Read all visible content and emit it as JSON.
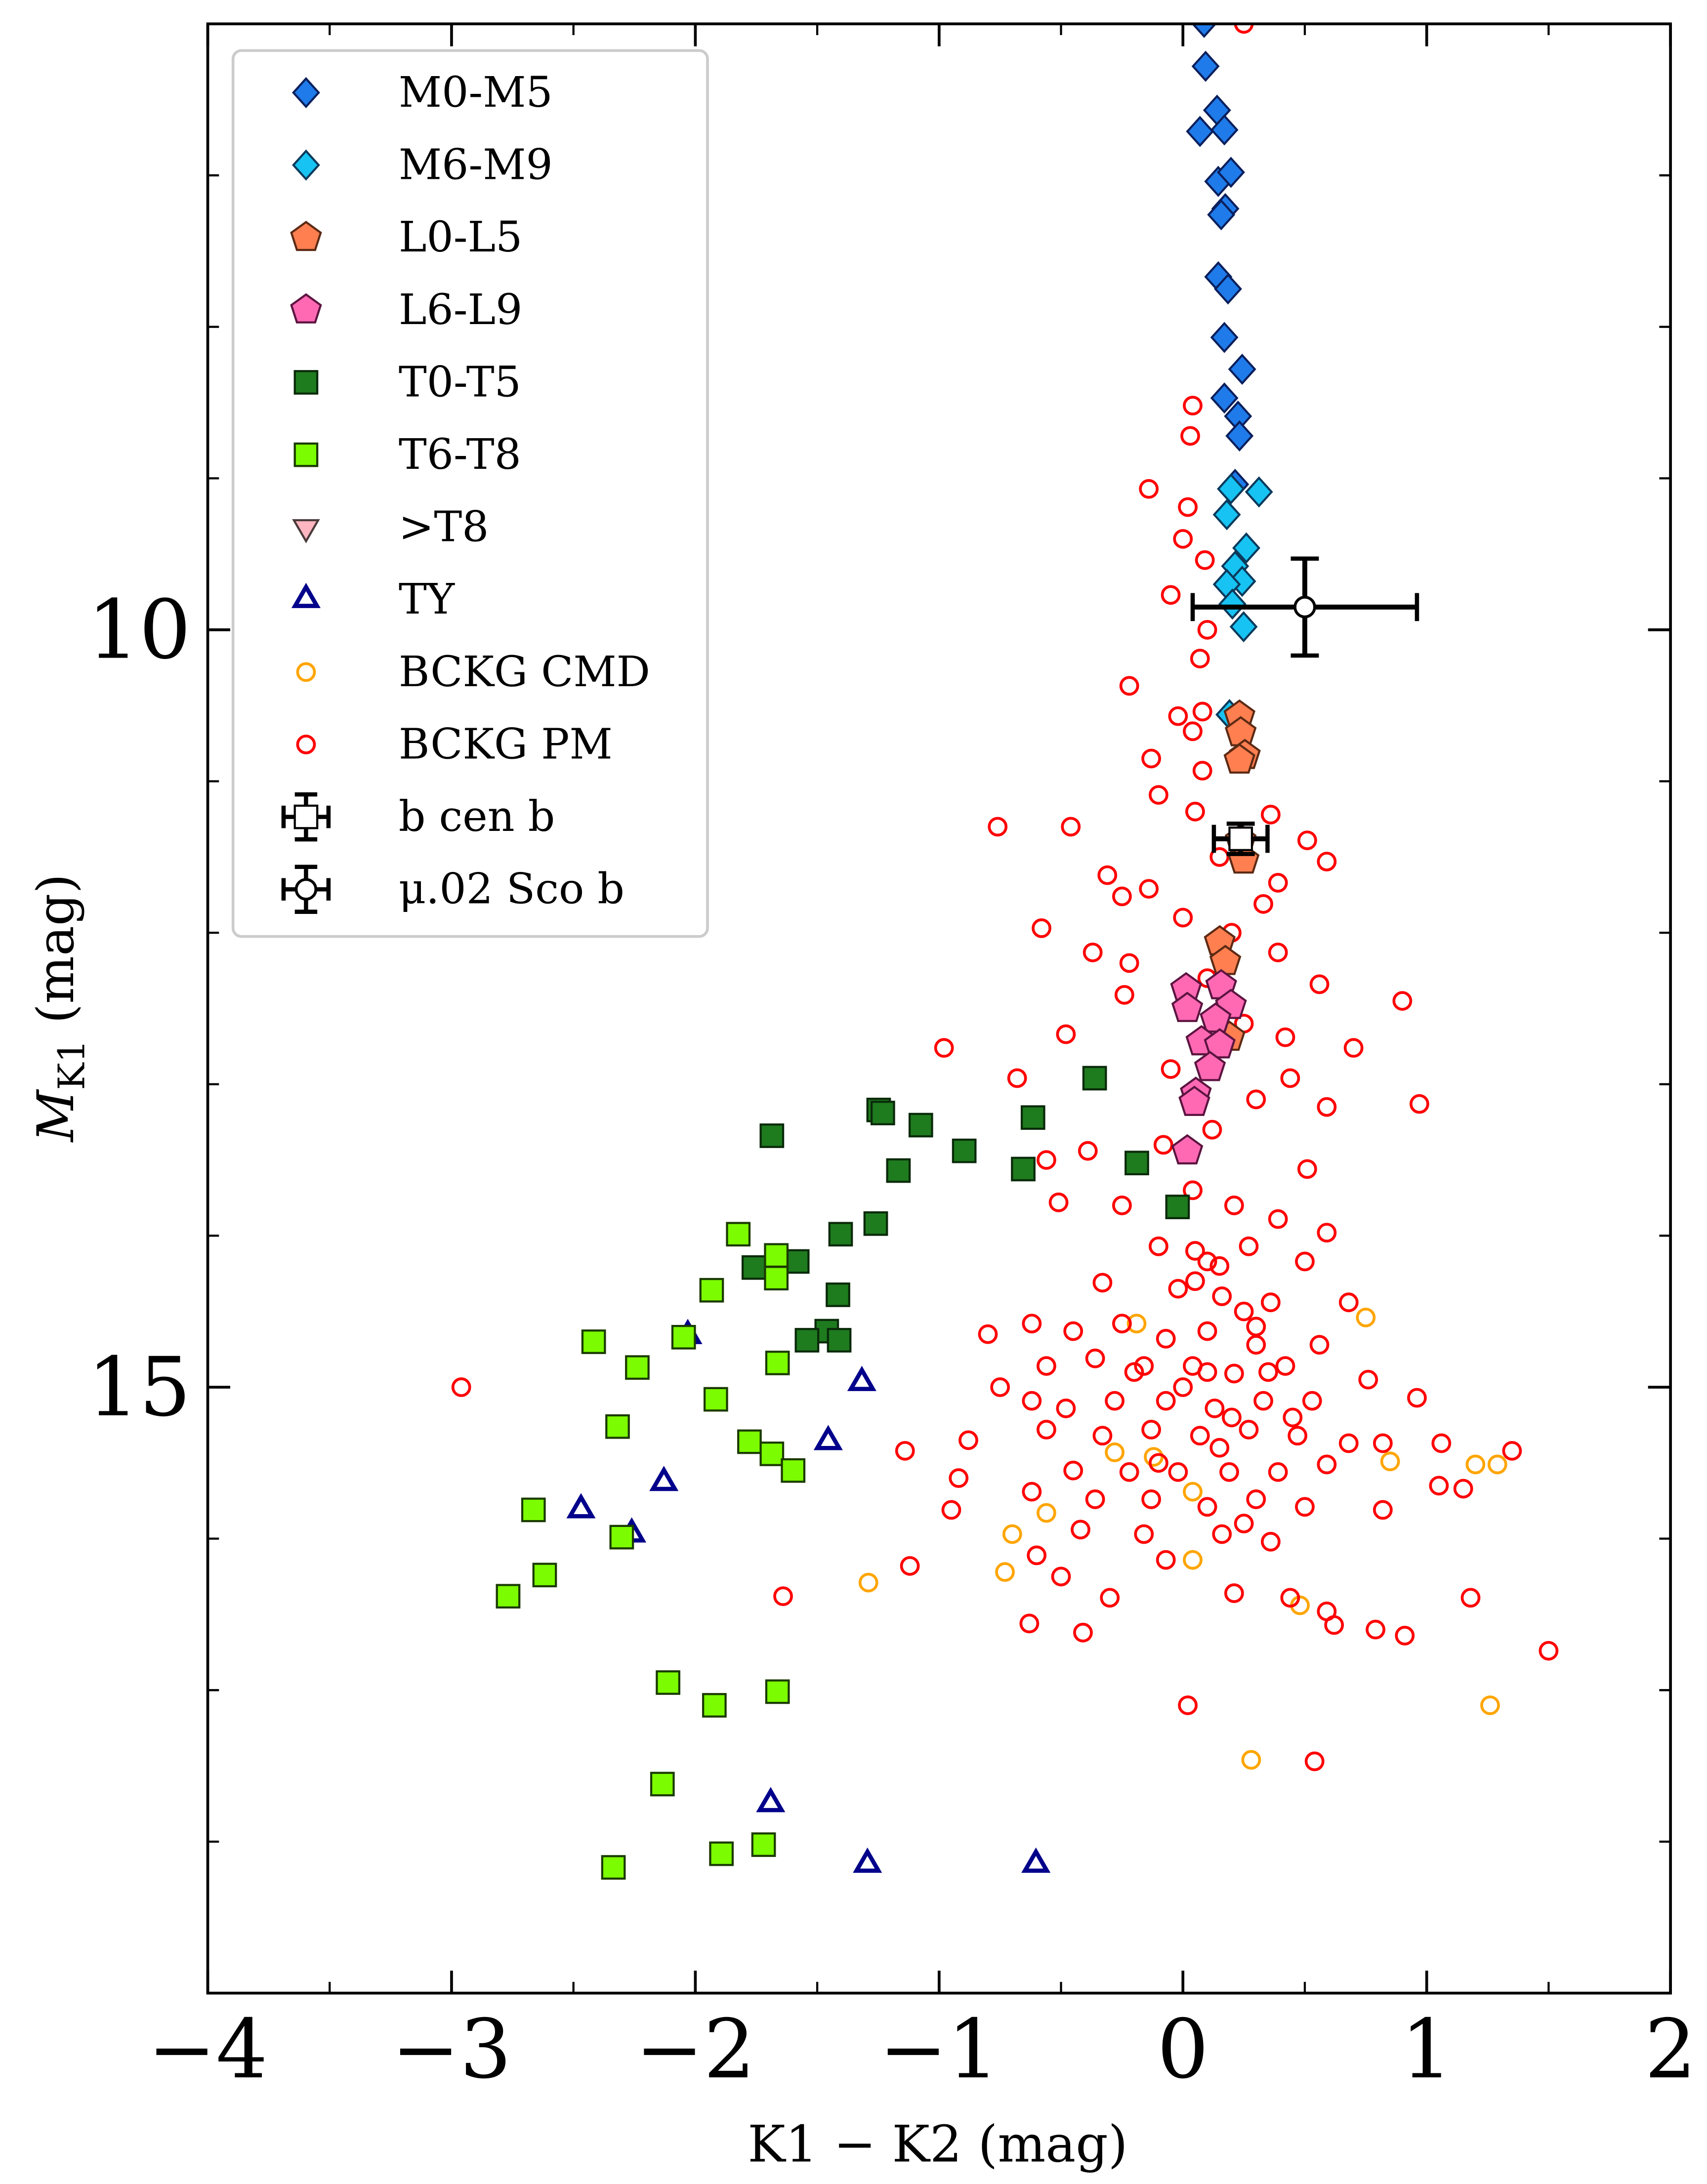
{
  "chart_data": {
    "type": "scatter",
    "xlabel": "K1 − K2 (mag)",
    "ylabel": [
      "M",
      "K1",
      " (mag)"
    ],
    "xlim": [
      -4,
      2
    ],
    "ylim": [
      6,
      19
    ],
    "y_inverted": true,
    "xticks": [
      {
        "value": -4,
        "label": "−4"
      },
      {
        "value": -3,
        "label": "−3"
      },
      {
        "value": -2,
        "label": "−2"
      },
      {
        "value": -1,
        "label": "−1"
      },
      0,
      1,
      2
    ],
    "xminor": [
      -3.5,
      -2.5,
      -1.5,
      -0.5,
      0.5,
      1.5
    ],
    "yticks": [
      10,
      15
    ],
    "yminor": [
      7,
      8,
      9,
      11,
      12,
      13,
      14,
      16,
      17,
      18
    ],
    "legend": "upper left",
    "series": [
      {
        "name": "M0-M5",
        "marker": "D",
        "color": "#1f7bea",
        "edgecolor": "#0b1f5c",
        "filled": true,
        "x": [
          0.087,
          0.093,
          0.14,
          0.07,
          0.17,
          0.145,
          0.197,
          0.174,
          0.157,
          0.145,
          0.185,
          0.17,
          0.243,
          0.17,
          0.226,
          0.232,
          0.214
        ],
        "y": [
          5.99,
          6.28,
          6.57,
          6.71,
          6.7,
          7.04,
          6.98,
          7.22,
          7.26,
          7.67,
          7.75,
          8.07,
          8.28,
          8.47,
          8.59,
          8.72,
          9.04
        ]
      },
      {
        "name": "M6-M9",
        "marker": "D",
        "color": "#17c3f2",
        "edgecolor": "#0b3a5c",
        "filled": true,
        "x": [
          0.312,
          0.197,
          0.18,
          0.26,
          0.214,
          0.243,
          0.18,
          0.203,
          0.249,
          0.191
        ],
        "y": [
          9.09,
          9.07,
          9.24,
          9.46,
          9.58,
          9.68,
          9.7,
          9.83,
          9.98,
          10.56
        ]
      },
      {
        "name": "L0-L5",
        "marker": "p",
        "color": "#ff7f50",
        "edgecolor": "#5c2a14",
        "filled": true,
        "x": [
          0.232,
          0.237,
          0.254,
          0.232,
          0.237,
          0.249,
          0.151,
          0.174,
          0.191
        ],
        "y": [
          10.57,
          10.68,
          10.83,
          10.86,
          11.39,
          11.52,
          12.06,
          12.19,
          12.69
        ]
      },
      {
        "name": "L6-L9",
        "marker": "p",
        "color": "#ff69b4",
        "edgecolor": "#5c1440",
        "filled": true,
        "x": [
          0.013,
          0.018,
          0.157,
          0.197,
          0.134,
          0.076,
          0.151,
          0.111,
          0.053,
          0.047,
          0.018
        ],
        "y": [
          12.37,
          12.5,
          12.35,
          12.48,
          12.57,
          12.72,
          12.74,
          12.89,
          13.06,
          13.12,
          13.44
        ]
      },
      {
        "name": "T0-T5",
        "marker": "s",
        "color": "#1e7b1e",
        "edgecolor": "#0a2a0a",
        "filled": true,
        "x": [
          -0.362,
          -0.615,
          -1.248,
          -1.231,
          -1.075,
          -1.686,
          -0.897,
          -0.655,
          -1.167,
          -0.189,
          -0.022,
          -1.404,
          -1.26,
          -1.76,
          -1.582,
          -1.415,
          -1.461,
          -1.542,
          -1.41
        ],
        "y": [
          12.96,
          13.22,
          13.17,
          13.19,
          13.27,
          13.34,
          13.44,
          13.56,
          13.57,
          13.52,
          13.81,
          13.99,
          13.92,
          14.21,
          14.17,
          14.39,
          14.63,
          14.69,
          14.69
        ]
      },
      {
        "name": "T6-T8",
        "marker": "s",
        "color": "#7cfc00",
        "edgecolor": "#1a3a00",
        "filled": true,
        "x": [
          -1.824,
          -1.668,
          -1.668,
          -1.933,
          -2.048,
          -2.417,
          -2.238,
          -1.663,
          -1.916,
          -2.319,
          -1.778,
          -1.686,
          -1.599,
          -2.664,
          -2.302,
          -2.618,
          -2.768,
          -2.112,
          -1.922,
          -1.663,
          -2.135,
          -1.893,
          -1.72,
          -2.336
        ],
        "y": [
          13.99,
          14.13,
          14.28,
          14.36,
          14.67,
          14.7,
          14.87,
          14.84,
          15.08,
          15.26,
          15.36,
          15.44,
          15.55,
          15.81,
          15.99,
          16.24,
          16.38,
          16.95,
          17.1,
          17.01,
          17.62,
          18.08,
          18.02,
          18.17
        ]
      },
      {
        "name": ">T8",
        "marker": "v",
        "color": "#ffb6c1",
        "edgecolor": "#4a3a3a",
        "filled": true,
        "x": [],
        "y": []
      },
      {
        "name": "TY",
        "marker": "^",
        "color": "#00008b",
        "filled": false,
        "x": [
          -2.031,
          -1.317,
          -1.455,
          -2.129,
          -2.469,
          -2.261,
          -1.691,
          -1.294,
          -0.603
        ],
        "y": [
          14.66,
          14.97,
          15.36,
          15.63,
          15.81,
          15.97,
          17.75,
          18.15,
          18.15
        ]
      },
      {
        "name": "BCKG CMD",
        "marker": "o",
        "color": "#ffa500",
        "filled": false,
        "x": [
          0.75,
          -0.19,
          -0.7,
          -0.56,
          -1.29,
          -0.73,
          -0.12,
          0.04,
          0.04,
          0.48,
          1.2,
          1.29,
          1.26,
          0.28,
          0.85,
          -0.28
        ],
        "y": [
          14.54,
          14.58,
          15.97,
          15.83,
          16.29,
          16.22,
          15.46,
          15.69,
          16.14,
          16.44,
          15.51,
          15.51,
          17.1,
          17.46,
          15.49,
          15.43
        ]
      },
      {
        "name": "BCKG PM",
        "marker": "o",
        "color": "#ff0000",
        "filled": false,
        "x": [
          0.25,
          -0.14,
          0.02,
          0.03,
          0.04,
          0.0,
          0.09,
          -0.05,
          0.1,
          0.07,
          -0.22,
          0.08,
          -0.02,
          0.04,
          -0.13,
          0.08,
          -0.1,
          0.36,
          -0.76,
          -0.46,
          0.51,
          0.59,
          0.39,
          -0.31,
          -0.14,
          -0.58,
          0.33,
          -0.25,
          -0.37,
          -0.22,
          0.39,
          0.56,
          0.9,
          -0.24,
          -0.48,
          -0.98,
          0.42,
          0.7,
          0.44,
          0.97,
          -0.68,
          0.59,
          -0.56,
          0.51,
          -0.39,
          -0.51,
          -0.25,
          0.04,
          0.21,
          0.39,
          0.05,
          0.15,
          0.0,
          0.2,
          0.1,
          0.25,
          -0.05,
          0.3,
          0.12,
          -0.08,
          0.59,
          -0.1,
          0.1,
          0.27,
          0.5,
          -0.33,
          -0.02,
          0.16,
          0.36,
          0.68,
          -0.62,
          -0.45,
          -0.25,
          -0.07,
          0.1,
          0.3,
          0.56,
          -0.8,
          -0.56,
          -0.36,
          -0.16,
          0.04,
          0.21,
          0.42,
          0.76,
          0.96,
          -0.75,
          -0.62,
          -0.48,
          -0.28,
          -0.07,
          0.13,
          0.33,
          0.53,
          -0.56,
          -0.33,
          -0.13,
          0.07,
          0.27,
          0.47,
          0.68,
          0.82,
          1.06,
          1.35,
          -0.88,
          -1.14,
          -0.45,
          -0.22,
          -0.02,
          0.19,
          0.39,
          0.59,
          1.05,
          1.15,
          -0.92,
          -0.62,
          -0.36,
          -0.13,
          0.1,
          0.3,
          0.5,
          0.82,
          -0.95,
          -0.42,
          -0.16,
          0.16,
          0.36,
          -0.07,
          -0.6,
          -1.12,
          -0.5,
          -0.3,
          0.21,
          0.44,
          0.59,
          1.18,
          -0.63,
          -0.41,
          0.62,
          0.79,
          0.91,
          -1.64,
          1.5,
          0.02,
          0.54,
          -2.96,
          0.15,
          0.25,
          0.05,
          0.35,
          0.2,
          0.0,
          0.3,
          0.1,
          -0.2,
          0.45,
          0.15,
          -0.1,
          0.25,
          0.05
        ],
        "y": [
          6.0,
          9.07,
          9.19,
          8.72,
          8.52,
          9.4,
          9.54,
          9.77,
          10.0,
          10.19,
          10.37,
          10.54,
          10.57,
          10.67,
          10.85,
          10.93,
          11.09,
          11.22,
          11.3,
          11.3,
          11.39,
          11.53,
          11.67,
          11.62,
          11.71,
          11.97,
          11.81,
          11.76,
          12.13,
          12.2,
          12.13,
          12.34,
          12.45,
          12.41,
          12.67,
          12.76,
          12.69,
          12.76,
          12.96,
          13.13,
          12.96,
          13.15,
          13.5,
          13.56,
          13.44,
          13.78,
          13.8,
          13.7,
          13.8,
          13.89,
          11.2,
          11.5,
          11.9,
          12.0,
          12.3,
          12.6,
          12.9,
          13.1,
          13.3,
          13.4,
          13.98,
          14.07,
          14.17,
          14.07,
          14.17,
          14.31,
          14.35,
          14.4,
          14.44,
          14.44,
          14.58,
          14.63,
          14.58,
          14.68,
          14.63,
          14.72,
          14.72,
          14.65,
          14.86,
          14.81,
          14.86,
          14.86,
          14.91,
          14.86,
          14.95,
          15.07,
          15.0,
          15.09,
          15.14,
          15.09,
          15.09,
          15.14,
          15.09,
          15.09,
          15.28,
          15.32,
          15.28,
          15.32,
          15.28,
          15.32,
          15.37,
          15.37,
          15.37,
          15.42,
          15.35,
          15.42,
          15.55,
          15.56,
          15.56,
          15.56,
          15.56,
          15.51,
          15.65,
          15.67,
          15.6,
          15.69,
          15.74,
          15.74,
          15.79,
          15.74,
          15.79,
          15.81,
          15.81,
          15.94,
          15.97,
          15.97,
          16.02,
          16.14,
          16.11,
          16.18,
          16.25,
          16.39,
          16.36,
          16.39,
          16.48,
          16.39,
          16.56,
          16.62,
          16.57,
          16.6,
          16.64,
          16.38,
          16.74,
          17.1,
          17.47,
          15.0,
          14.2,
          14.5,
          14.1,
          14.9,
          15.2,
          15.0,
          14.6,
          14.9,
          14.9,
          15.2,
          15.4,
          15.5,
          15.9,
          14.3
        ]
      },
      {
        "name": "b cen b",
        "marker": "s",
        "color": "#ffffff",
        "edgecolor": "#000000",
        "filled": true,
        "errorbar": true,
        "x": [
          0.237
        ],
        "y": [
          11.38
        ],
        "xerr": [
          0.11
        ],
        "yerr": [
          0.1
        ]
      },
      {
        "name": "μ.02 Sco b",
        "marker": "o",
        "color": "#ffffff",
        "edgecolor": "#000000",
        "filled": true,
        "errorbar": true,
        "x": [
          0.5
        ],
        "y": [
          9.85
        ],
        "xerr": [
          0.46
        ],
        "yerr": [
          0.32
        ]
      }
    ]
  }
}
